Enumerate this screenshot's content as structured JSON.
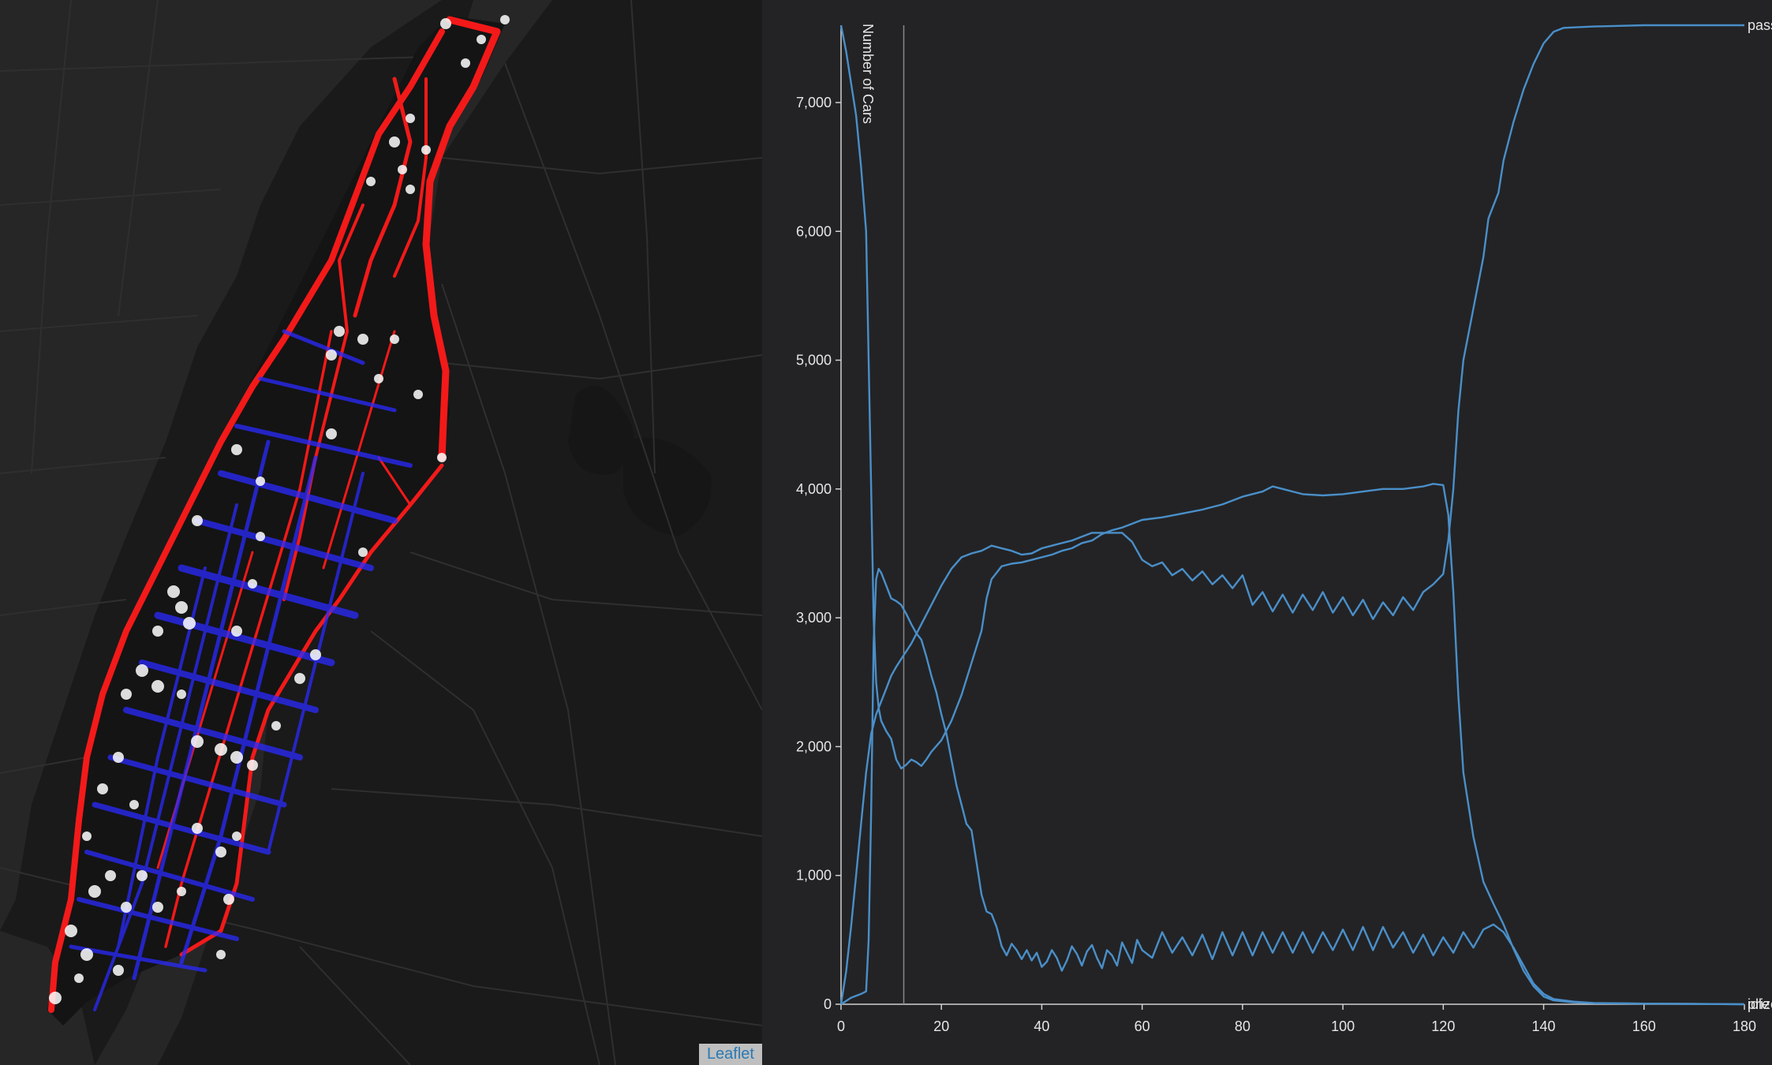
{
  "map": {
    "attribution": "Leaflet",
    "colors": {
      "background": "#1a1a1a",
      "water": "#111111",
      "roads": "#2c2c2c",
      "trip_red": "#ff1a1a",
      "trip_blue": "#2222ff",
      "point_white": "#ffffff"
    }
  },
  "chart_data": {
    "type": "line",
    "ylabel": "Number of Cars",
    "xlabel": "",
    "xlim": [
      0,
      180
    ],
    "ylim": [
      0,
      7600
    ],
    "x_ticks": [
      0,
      20,
      40,
      60,
      80,
      100,
      120,
      140,
      160,
      180
    ],
    "y_ticks": [
      0,
      1000,
      2000,
      3000,
      4000,
      5000,
      6000,
      7000
    ],
    "marker_x": 12.5,
    "grid": false,
    "line_color": "#4a8fc9",
    "series": [
      {
        "name": "idle",
        "points": [
          [
            0,
            7600
          ],
          [
            1,
            7400
          ],
          [
            3,
            6900
          ],
          [
            4,
            6500
          ],
          [
            5,
            6000
          ],
          [
            5.5,
            5000
          ],
          [
            6,
            4000
          ],
          [
            6.5,
            3000
          ],
          [
            7,
            2500
          ],
          [
            7.5,
            2300
          ],
          [
            8,
            2200
          ],
          [
            9,
            2120
          ],
          [
            10,
            2060
          ],
          [
            11,
            1900
          ],
          [
            12,
            1830
          ],
          [
            13,
            1860
          ],
          [
            14,
            1900
          ],
          [
            15,
            1880
          ],
          [
            16,
            1850
          ],
          [
            17,
            1900
          ],
          [
            18,
            1960
          ],
          [
            20,
            2050
          ],
          [
            22,
            2200
          ],
          [
            24,
            2400
          ],
          [
            26,
            2650
          ],
          [
            28,
            2900
          ],
          [
            29,
            3150
          ],
          [
            30,
            3300
          ],
          [
            31,
            3350
          ],
          [
            32,
            3400
          ],
          [
            34,
            3420
          ],
          [
            36,
            3430
          ],
          [
            38,
            3450
          ],
          [
            40,
            3470
          ],
          [
            42,
            3490
          ],
          [
            44,
            3520
          ],
          [
            46,
            3540
          ],
          [
            48,
            3580
          ],
          [
            50,
            3600
          ],
          [
            52,
            3650
          ],
          [
            54,
            3680
          ],
          [
            56,
            3700
          ],
          [
            60,
            3760
          ],
          [
            64,
            3780
          ],
          [
            68,
            3810
          ],
          [
            72,
            3840
          ],
          [
            76,
            3880
          ],
          [
            80,
            3940
          ],
          [
            84,
            3980
          ],
          [
            86,
            4020
          ],
          [
            88,
            4000
          ],
          [
            90,
            3980
          ],
          [
            92,
            3960
          ],
          [
            96,
            3950
          ],
          [
            100,
            3960
          ],
          [
            104,
            3980
          ],
          [
            108,
            4000
          ],
          [
            112,
            4000
          ],
          [
            116,
            4020
          ],
          [
            118,
            4040
          ],
          [
            120,
            4030
          ],
          [
            121,
            3800
          ],
          [
            122,
            3200
          ],
          [
            123,
            2400
          ],
          [
            124,
            1800
          ],
          [
            126,
            1300
          ],
          [
            128,
            950
          ],
          [
            130,
            780
          ],
          [
            132,
            620
          ],
          [
            134,
            430
          ],
          [
            136,
            260
          ],
          [
            138,
            140
          ],
          [
            140,
            60
          ],
          [
            142,
            30
          ],
          [
            146,
            15
          ],
          [
            150,
            8
          ],
          [
            160,
            5
          ],
          [
            170,
            3
          ],
          [
            180,
            0
          ]
        ]
      },
      {
        "name": "pass",
        "points": [
          [
            0,
            0
          ],
          [
            1,
            250
          ],
          [
            2,
            600
          ],
          [
            3,
            1000
          ],
          [
            4,
            1400
          ],
          [
            5,
            1800
          ],
          [
            6,
            2100
          ],
          [
            7,
            2250
          ],
          [
            8,
            2350
          ],
          [
            9,
            2450
          ],
          [
            10,
            2550
          ],
          [
            11,
            2620
          ],
          [
            12,
            2680
          ],
          [
            14,
            2800
          ],
          [
            16,
            2950
          ],
          [
            18,
            3100
          ],
          [
            20,
            3250
          ],
          [
            22,
            3380
          ],
          [
            24,
            3470
          ],
          [
            26,
            3500
          ],
          [
            28,
            3520
          ],
          [
            30,
            3560
          ],
          [
            32,
            3540
          ],
          [
            34,
            3520
          ],
          [
            36,
            3490
          ],
          [
            38,
            3500
          ],
          [
            40,
            3540
          ],
          [
            42,
            3560
          ],
          [
            44,
            3580
          ],
          [
            46,
            3600
          ],
          [
            48,
            3630
          ],
          [
            50,
            3660
          ],
          [
            54,
            3660
          ],
          [
            56,
            3660
          ],
          [
            58,
            3590
          ],
          [
            60,
            3450
          ],
          [
            62,
            3400
          ],
          [
            64,
            3430
          ],
          [
            66,
            3330
          ],
          [
            68,
            3380
          ],
          [
            70,
            3290
          ],
          [
            72,
            3360
          ],
          [
            74,
            3260
          ],
          [
            76,
            3330
          ],
          [
            78,
            3230
          ],
          [
            80,
            3330
          ],
          [
            82,
            3100
          ],
          [
            84,
            3200
          ],
          [
            86,
            3050
          ],
          [
            88,
            3180
          ],
          [
            90,
            3040
          ],
          [
            92,
            3180
          ],
          [
            94,
            3060
          ],
          [
            96,
            3200
          ],
          [
            98,
            3040
          ],
          [
            100,
            3160
          ],
          [
            102,
            3020
          ],
          [
            104,
            3140
          ],
          [
            106,
            2990
          ],
          [
            108,
            3120
          ],
          [
            110,
            3020
          ],
          [
            112,
            3160
          ],
          [
            114,
            3060
          ],
          [
            116,
            3200
          ],
          [
            118,
            3260
          ],
          [
            120,
            3340
          ],
          [
            121,
            3600
          ],
          [
            122,
            4000
          ],
          [
            123,
            4600
          ],
          [
            124,
            5000
          ],
          [
            126,
            5400
          ],
          [
            128,
            5800
          ],
          [
            129,
            6100
          ],
          [
            130,
            6200
          ],
          [
            131,
            6300
          ],
          [
            132,
            6550
          ],
          [
            134,
            6850
          ],
          [
            136,
            7100
          ],
          [
            138,
            7300
          ],
          [
            140,
            7460
          ],
          [
            142,
            7550
          ],
          [
            144,
            7580
          ],
          [
            150,
            7590
          ],
          [
            160,
            7600
          ],
          [
            180,
            7600
          ]
        ]
      },
      {
        "name": "prize",
        "points": [
          [
            0,
            0
          ],
          [
            2,
            50
          ],
          [
            4,
            80
          ],
          [
            5,
            100
          ],
          [
            5.5,
            500
          ],
          [
            6,
            1500
          ],
          [
            6.5,
            2800
          ],
          [
            7,
            3300
          ],
          [
            7.5,
            3380
          ],
          [
            8,
            3350
          ],
          [
            9,
            3250
          ],
          [
            10,
            3150
          ],
          [
            11,
            3130
          ],
          [
            12,
            3100
          ],
          [
            13,
            3030
          ],
          [
            14,
            2950
          ],
          [
            15,
            2880
          ],
          [
            16,
            2830
          ],
          [
            17,
            2700
          ],
          [
            18,
            2550
          ],
          [
            19,
            2420
          ],
          [
            20,
            2250
          ],
          [
            21,
            2100
          ],
          [
            22,
            1900
          ],
          [
            23,
            1700
          ],
          [
            24,
            1550
          ],
          [
            25,
            1400
          ],
          [
            26,
            1350
          ],
          [
            27,
            1100
          ],
          [
            28,
            850
          ],
          [
            29,
            720
          ],
          [
            30,
            700
          ],
          [
            31,
            600
          ],
          [
            32,
            450
          ],
          [
            33,
            380
          ],
          [
            34,
            470
          ],
          [
            35,
            420
          ],
          [
            36,
            350
          ],
          [
            37,
            420
          ],
          [
            38,
            340
          ],
          [
            39,
            400
          ],
          [
            40,
            290
          ],
          [
            41,
            330
          ],
          [
            42,
            420
          ],
          [
            43,
            360
          ],
          [
            44,
            260
          ],
          [
            45,
            340
          ],
          [
            46,
            450
          ],
          [
            47,
            390
          ],
          [
            48,
            300
          ],
          [
            49,
            410
          ],
          [
            50,
            460
          ],
          [
            51,
            360
          ],
          [
            52,
            280
          ],
          [
            53,
            420
          ],
          [
            54,
            380
          ],
          [
            55,
            300
          ],
          [
            56,
            480
          ],
          [
            57,
            400
          ],
          [
            58,
            320
          ],
          [
            59,
            500
          ],
          [
            60,
            420
          ],
          [
            62,
            360
          ],
          [
            64,
            560
          ],
          [
            66,
            400
          ],
          [
            68,
            520
          ],
          [
            70,
            380
          ],
          [
            72,
            540
          ],
          [
            74,
            350
          ],
          [
            76,
            560
          ],
          [
            78,
            380
          ],
          [
            80,
            560
          ],
          [
            82,
            380
          ],
          [
            84,
            560
          ],
          [
            86,
            400
          ],
          [
            88,
            560
          ],
          [
            90,
            400
          ],
          [
            92,
            560
          ],
          [
            94,
            400
          ],
          [
            96,
            560
          ],
          [
            98,
            420
          ],
          [
            100,
            580
          ],
          [
            102,
            420
          ],
          [
            104,
            600
          ],
          [
            106,
            420
          ],
          [
            108,
            600
          ],
          [
            110,
            440
          ],
          [
            112,
            560
          ],
          [
            114,
            400
          ],
          [
            116,
            540
          ],
          [
            118,
            380
          ],
          [
            120,
            520
          ],
          [
            122,
            400
          ],
          [
            124,
            560
          ],
          [
            126,
            440
          ],
          [
            128,
            580
          ],
          [
            130,
            620
          ],
          [
            132,
            560
          ],
          [
            134,
            440
          ],
          [
            136,
            300
          ],
          [
            138,
            160
          ],
          [
            140,
            80
          ],
          [
            142,
            40
          ],
          [
            146,
            20
          ],
          [
            150,
            10
          ],
          [
            160,
            5
          ],
          [
            180,
            0
          ]
        ]
      }
    ],
    "end_labels": [
      "idle",
      "pass",
      "prize"
    ]
  }
}
